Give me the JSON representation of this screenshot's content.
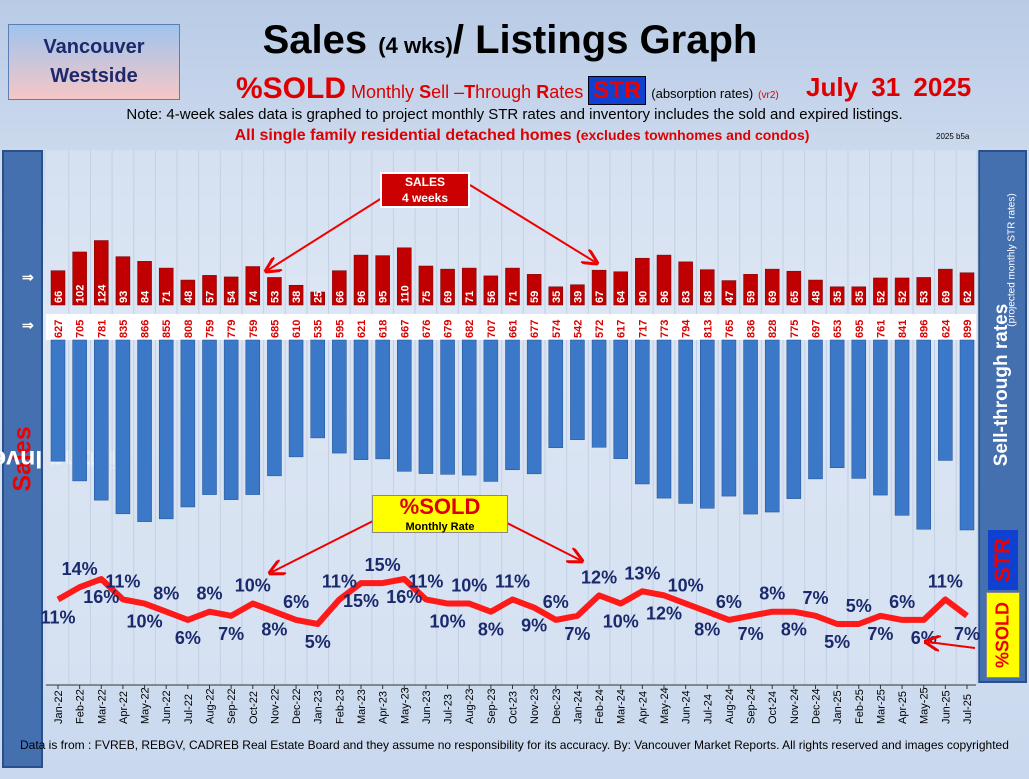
{
  "header": {
    "logo_line1": "Vancouver",
    "logo_line2": "Westside",
    "title": "Sales",
    "title_small": "(4 wks)",
    "title_rest": "/ Listings Graph",
    "sold": "%SOLD",
    "sub1": "Monthly",
    "sub_s": "S",
    "sub2": "ell –",
    "sub_t": "T",
    "sub3": "hrough",
    "sub_r": "R",
    "sub4": "ates",
    "str": "STR",
    "absorption": "(absorption rates)",
    "vr": "(vr2)",
    "date": "July 31 2025",
    "note": "Note: 4-week sales data is graphed to project monthly STR rates and inventory includes the sold and expired listings.",
    "note2": "All single family residential detached homes",
    "note2_small": "(excludes townhomes and condos)",
    "version": "2025 b5a"
  },
  "left_label": {
    "a": "Listing Inventory /",
    "b": "Sales"
  },
  "right_label": {
    "main": "Sell-through rates",
    "sub": "(projected monthly STR rates)",
    "str": "STR",
    "sold": "%SOLD"
  },
  "callouts": {
    "sales_line1": "SALES",
    "sales_line2": "4  weeks",
    "sold_line1": "%SOLD",
    "sold_line2": "Monthly Rate"
  },
  "footer": "Data is from : FVREB, REBGV, CADREB Real Estate Board and they assume no responsibility for its accuracy. By: Vancouver Market Reports. All rights reserved and  images copyrighted",
  "colors": {
    "sales": "#c00000",
    "listings": "#3b78c8",
    "sold_line": "#ff1a1a",
    "labels": "#1a2a6c"
  },
  "chart_data": {
    "type": "bar+line",
    "title": "Sales (4 wks)/ Listings Graph",
    "categories": [
      "Jan-22",
      "Feb-22",
      "Mar-22",
      "Apr-22",
      "May-22",
      "Jun-22",
      "Jul-22",
      "Aug-22",
      "Sep-22",
      "Oct-22",
      "Nov-22",
      "Dec-22",
      "Jan-23",
      "Feb-23",
      "Mar-23",
      "Apr-23",
      "May-23",
      "Jun-23",
      "Jul-23",
      "Aug-23",
      "Sep-23",
      "Oct-23",
      "Nov-23",
      "Dec-23",
      "Jan-24",
      "Feb-24",
      "Mar-24",
      "Apr-24",
      "May-24",
      "Jun-24",
      "Jul-24",
      "Aug-24",
      "Sep-24",
      "Oct-24",
      "Nov-24",
      "Dec-24",
      "Jan-25",
      "Feb-25",
      "Mar-25",
      "Apr-25",
      "May-25",
      "Jun-25",
      "Jul-25"
    ],
    "series": [
      {
        "name": "Sales (4 weeks)",
        "values": [
          66,
          102,
          124,
          93,
          84,
          71,
          48,
          57,
          54,
          74,
          53,
          38,
          25,
          66,
          96,
          95,
          110,
          75,
          69,
          71,
          56,
          71,
          59,
          35,
          39,
          67,
          64,
          90,
          96,
          83,
          68,
          47,
          59,
          69,
          65,
          48,
          35,
          35,
          52,
          52,
          53,
          69,
          62
        ]
      },
      {
        "name": "Listing Inventory",
        "values": [
          627,
          705,
          781,
          835,
          866,
          855,
          808,
          759,
          779,
          759,
          685,
          610,
          535,
          595,
          621,
          618,
          667,
          676,
          679,
          682,
          707,
          661,
          677,
          574,
          542,
          572,
          617,
          717,
          773,
          794,
          813,
          765,
          836,
          828,
          775,
          697,
          653,
          695,
          761,
          841,
          896,
          624,
          899
        ]
      },
      {
        "name": "%SOLD Monthly Rate",
        "unit": "%",
        "values": [
          11,
          14,
          16,
          11,
          10,
          8,
          6,
          8,
          7,
          10,
          8,
          6,
          5,
          11,
          15,
          15,
          16,
          11,
          10,
          10,
          8,
          11,
          9,
          6,
          7,
          12,
          10,
          13,
          12,
          10,
          8,
          6,
          7,
          8,
          8,
          7,
          5,
          5,
          7,
          6,
          6,
          11,
          7
        ]
      }
    ],
    "ylabel": "Listing Inventory / Sales",
    "y2label": "Sell-through rates",
    "grid": true
  }
}
